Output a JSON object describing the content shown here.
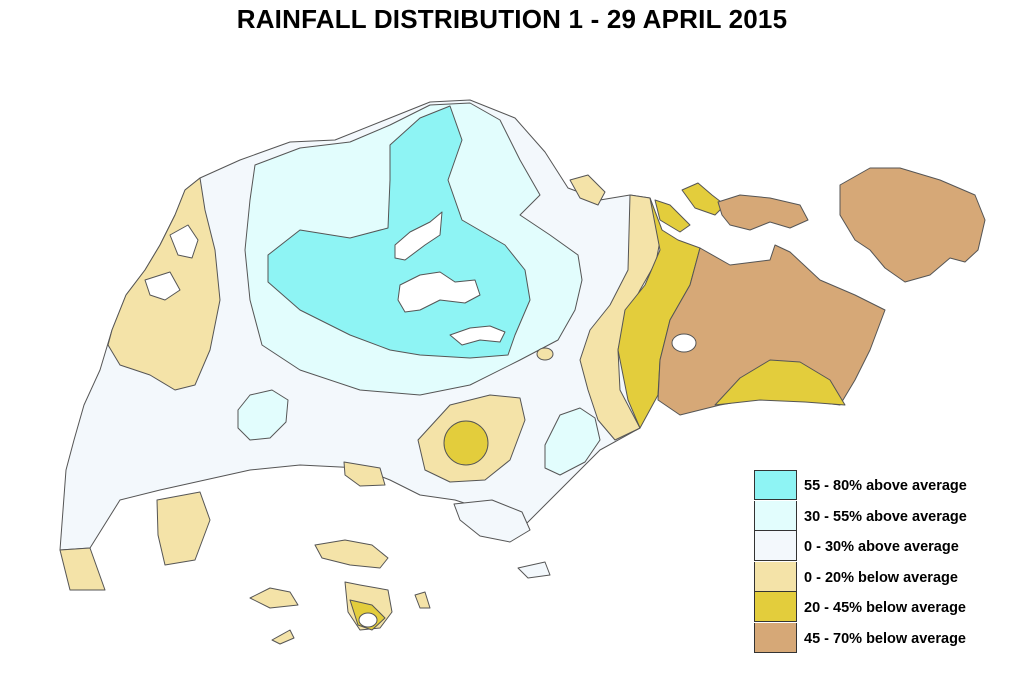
{
  "title": "RAINFALL DISTRIBUTION  1 - 29 APRIL 2015",
  "colors": {
    "c55_80_above": "#8ef4f4",
    "c30_55_above": "#e2fdfd",
    "c0_30_above": "#f3f8fc",
    "c0_20_below": "#f4e3a8",
    "c20_45_below": "#e3cd3c",
    "c45_70_below": "#d6a877",
    "outline": "#555555"
  },
  "legend": [
    {
      "label": "55 - 80% above average",
      "color": "#8ef4f4"
    },
    {
      "label": "30 - 55% above average",
      "color": "#e2fdfd"
    },
    {
      "label": "0 - 30% above average",
      "color": "#f3f8fc"
    },
    {
      "label": "0 - 20% below average",
      "color": "#f4e3a8"
    },
    {
      "label": "20 - 45% below average",
      "color": "#e3cd3c"
    },
    {
      "label": "45 - 70% below average",
      "color": "#d6a877"
    }
  ]
}
